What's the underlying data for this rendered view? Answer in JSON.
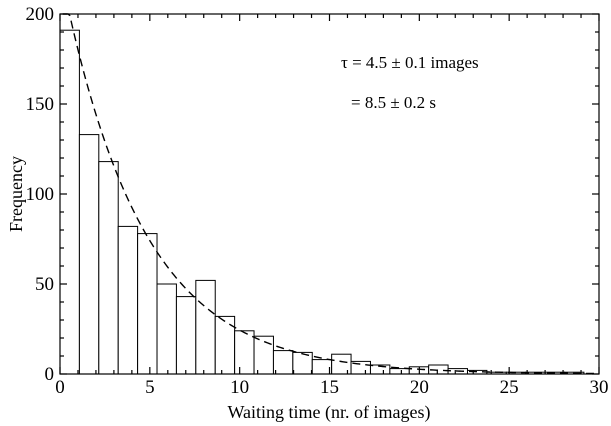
{
  "chart_data": {
    "type": "bar",
    "xlabel": "Waiting time (nr. of images)",
    "ylabel": "Frequency",
    "xlim": [
      0,
      30
    ],
    "ylim": [
      0,
      200
    ],
    "xticks": [
      "0",
      "5",
      "10",
      "15",
      "20",
      "25",
      "30"
    ],
    "yticks": [
      "0",
      "50",
      "100",
      "150",
      "200"
    ],
    "bin_width": 1.08,
    "x": [
      0.54,
      1.62,
      2.7,
      3.78,
      4.86,
      5.94,
      7.02,
      8.1,
      9.18,
      10.26,
      11.34,
      12.42,
      13.5,
      14.58,
      15.66,
      16.74,
      17.82,
      18.9,
      19.98,
      21.06,
      22.14,
      23.22,
      24.3,
      25.38,
      26.46,
      27.54,
      28.62
    ],
    "values": [
      191,
      133,
      118,
      82,
      78,
      50,
      43,
      52,
      32,
      24,
      21,
      13,
      12,
      8,
      11,
      7,
      5,
      3,
      4,
      5,
      3,
      2,
      1,
      1,
      1,
      1,
      1
    ],
    "grid": false,
    "fit": {
      "type": "exponential",
      "amplitude": 225,
      "tau": 4.5,
      "style": "dashed"
    },
    "annotations": [
      "τ = 4.5 ± 0.1 images",
      "= 8.5 ± 0.2 s"
    ]
  }
}
